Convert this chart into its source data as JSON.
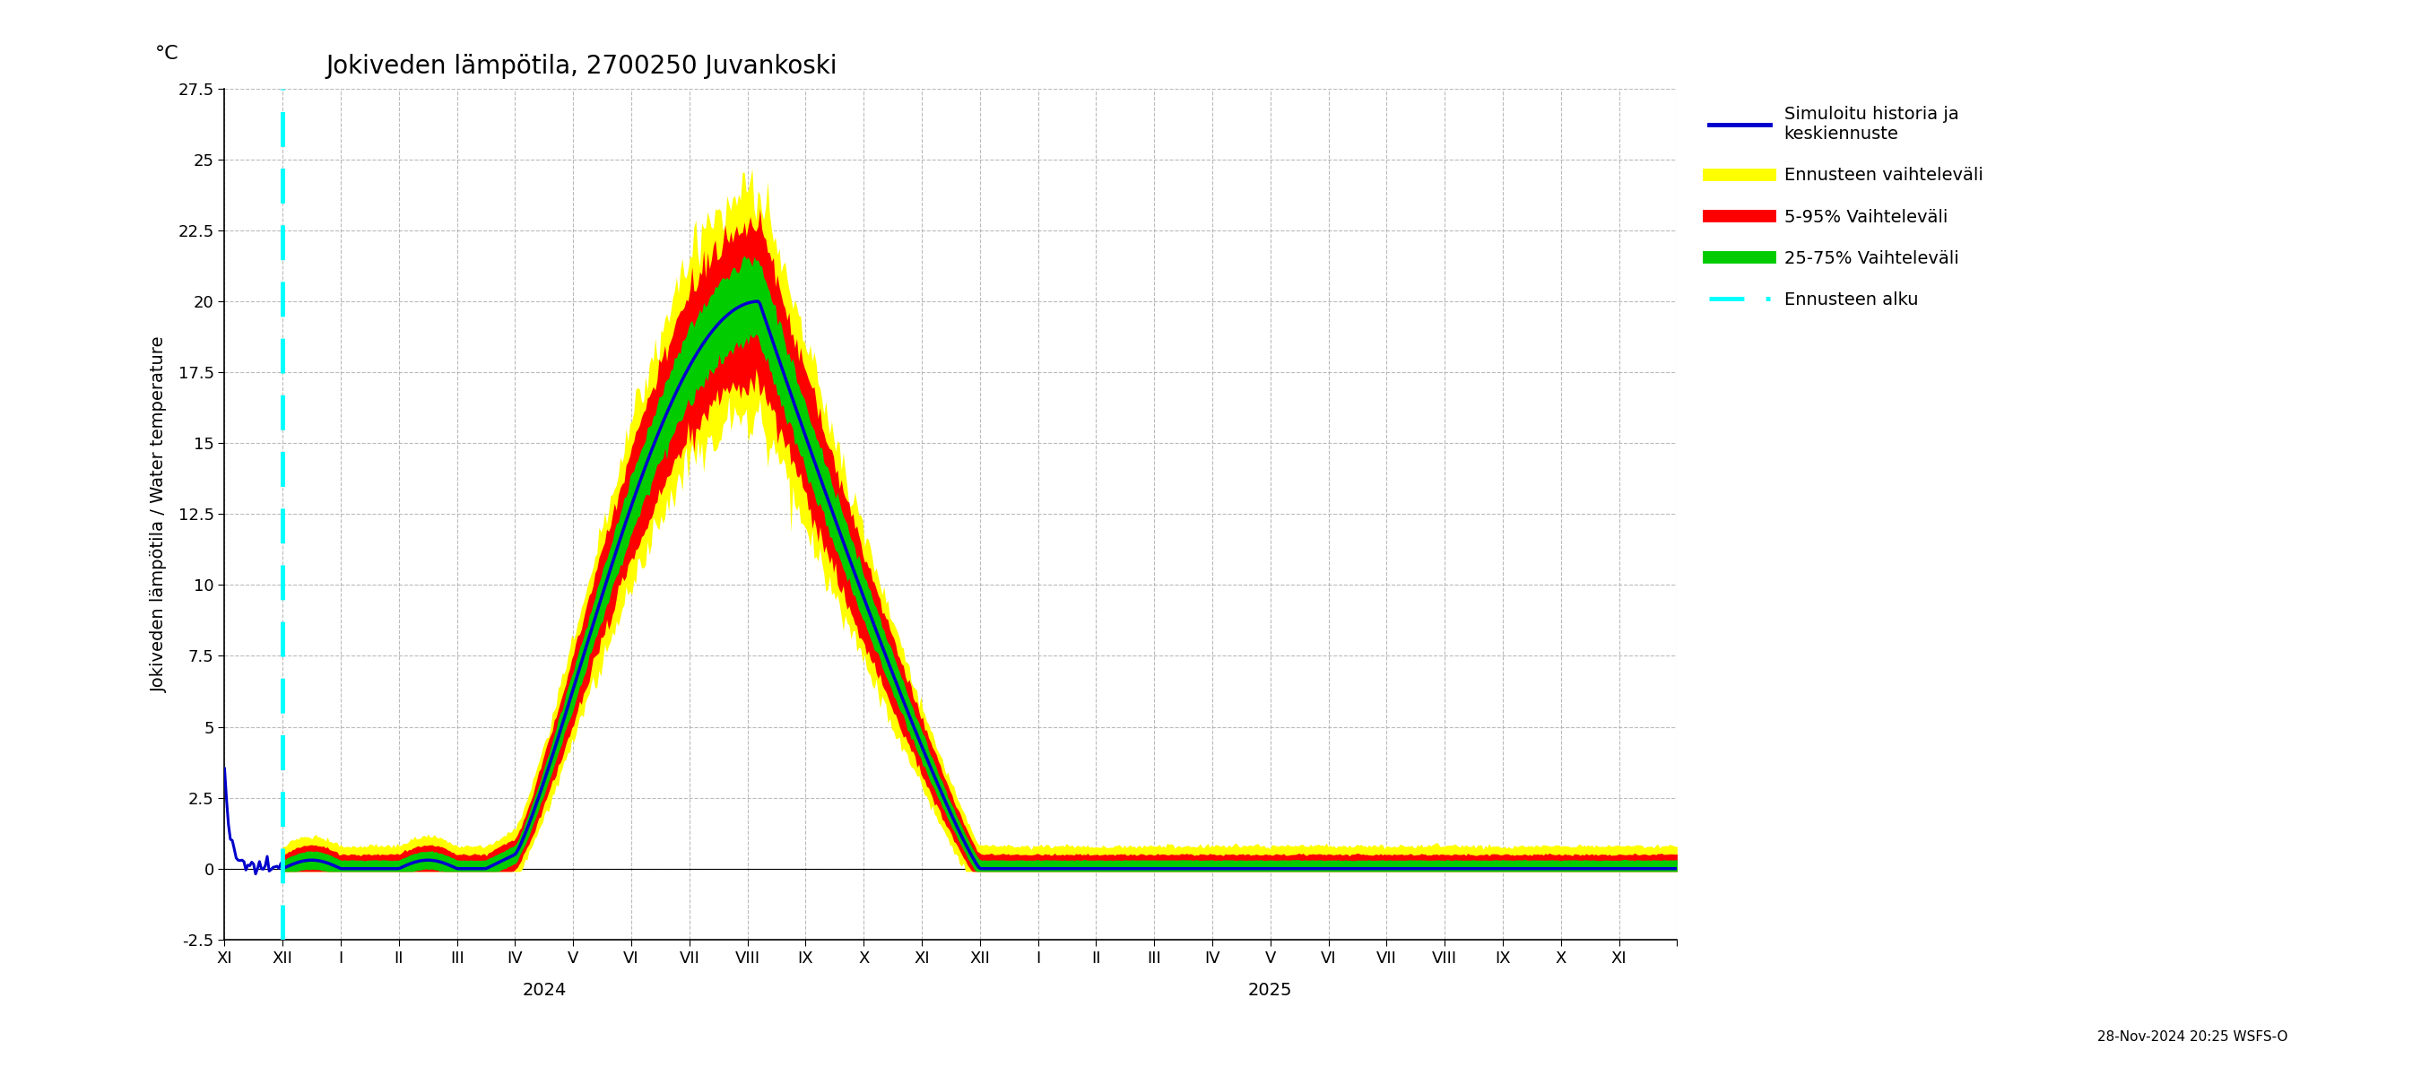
{
  "title": "Jokiveden lämpötila, 2700250 Juvankoski",
  "ylabel": "Jokiveden lämpötila / Water temperature",
  "ylabel2": "°C",
  "ylim": [
    -2.5,
    27.5
  ],
  "yticks": [
    -2.5,
    0.0,
    2.5,
    5.0,
    7.5,
    10.0,
    12.5,
    15.0,
    17.5,
    20.0,
    22.5,
    25.0,
    27.5
  ],
  "background_color": "#ffffff",
  "grid_color": "#aaaaaa",
  "title_fontsize": 20,
  "label_fontsize": 14,
  "tick_fontsize": 13,
  "legend_fontsize": 13,
  "watermark": "28-Nov-2024 20:25 WSFS-O",
  "colors": {
    "history": "#0000cc",
    "forecast_mean": "#0000cc",
    "band_yellow": "#ffff00",
    "band_red": "#ff0000",
    "band_green": "#00cc00",
    "cyan_line": "#00ffff"
  },
  "legend_labels": [
    "Simuloitu historia ja\nkeskiennuste",
    "Ennusteen vaihteleväli",
    "5-95% Vaihteleväli",
    "25-75% Vaihteleväli",
    "Ennusteen alku"
  ]
}
